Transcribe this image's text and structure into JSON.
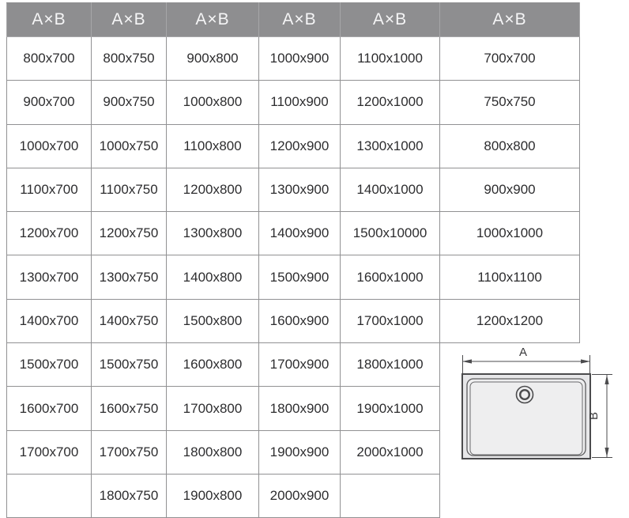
{
  "table": {
    "headers": [
      "A×B",
      "A×B",
      "A×B",
      "A×B",
      "A×B",
      "A×B"
    ],
    "rows": [
      [
        "800x700",
        "800x750",
        "900x800",
        "1000x900",
        "1100x1000",
        "700x700"
      ],
      [
        "900x700",
        "900x750",
        "1000x800",
        "1100x900",
        "1200x1000",
        "750x750"
      ],
      [
        "1000x700",
        "1000x750",
        "1100x800",
        "1200x900",
        "1300x1000",
        "800x800"
      ],
      [
        "1100x700",
        "1100x750",
        "1200x800",
        "1300x900",
        "1400x1000",
        "900x900"
      ],
      [
        "1200x700",
        "1200x750",
        "1300x800",
        "1400x900",
        "1500x10000",
        "1000x1000"
      ],
      [
        "1300x700",
        "1300x750",
        "1400x800",
        "1500x900",
        "1600x1000",
        "1100x1100"
      ],
      [
        "1400x700",
        "1400x750",
        "1500x800",
        "1600x900",
        "1700x1000",
        "1200x1200"
      ],
      [
        "1500x700",
        "1500x750",
        "1600x800",
        "1700x900",
        "1800x1000",
        null
      ],
      [
        "1600x700",
        "1600x750",
        "1700x800",
        "1800x900",
        "1900x1000",
        null
      ],
      [
        "1700x700",
        "1700x750",
        "1800x800",
        "1900x900",
        "2000x1000",
        null
      ],
      [
        "",
        "1800x750",
        "1900x800",
        "2000x900",
        "",
        null
      ]
    ]
  },
  "diagram": {
    "width_label": "A",
    "height_label": "B"
  },
  "colors": {
    "header_bg": "#8e8e90",
    "header_text": "#f5f5f6",
    "cell_border": "#919193",
    "cell_text": "#2d2d2f",
    "diagram_line": "#4b4b4d",
    "tray_fill": "#e7e7e9"
  }
}
